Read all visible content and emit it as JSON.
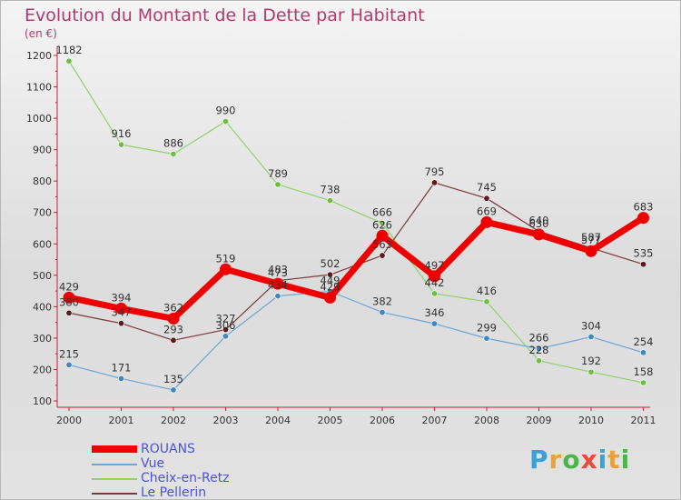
{
  "header": {
    "title": "Evolution du Montant de la Dette par Habitant",
    "unit": "(en €)"
  },
  "brand": {
    "text": "Proxiti"
  },
  "chart_data": {
    "type": "line",
    "title": "Evolution du Montant de la Dette par Habitant",
    "ylabel": "(en €)",
    "xlabel": "",
    "categories": [
      "2000",
      "2001",
      "2002",
      "2003",
      "2004",
      "2005",
      "2006",
      "2007",
      "2008",
      "2009",
      "2010",
      "2011"
    ],
    "ylim": [
      100,
      1200
    ],
    "yticks": [
      100,
      200,
      300,
      400,
      500,
      600,
      700,
      800,
      900,
      1000,
      1100,
      1200
    ],
    "grid": false,
    "legend": "bottom-left",
    "series": [
      {
        "name": "Cheix-en-Retz",
        "color": "#8ed36a",
        "marker": "#6cc040",
        "width": 1.2,
        "values": [
          1182,
          916,
          886,
          990,
          789,
          738,
          666,
          442,
          416,
          228,
          192,
          158
        ]
      },
      {
        "name": "Vue",
        "color": "#6ba6d6",
        "marker": "#3f87c4",
        "width": 1.2,
        "values": [
          215,
          171,
          135,
          306,
          434,
          449,
          382,
          346,
          299,
          266,
          304,
          254
        ]
      },
      {
        "name": "Le Pellerin",
        "color": "#7a3a3a",
        "marker": "#5c1a1a",
        "width": 1.2,
        "values": [
          380,
          347,
          293,
          327,
          483,
          502,
          563,
          795,
          745,
          640,
          587,
          535
        ]
      },
      {
        "name": "ROUANS",
        "color": "#ee0000",
        "marker": "#ee0000",
        "width": 7,
        "values": [
          429,
          394,
          362,
          519,
          473,
          429,
          626,
          497,
          669,
          630,
          577,
          683
        ]
      }
    ],
    "legend_order": [
      "ROUANS",
      "Vue",
      "Cheix-en-Retz",
      "Le Pellerin"
    ]
  }
}
